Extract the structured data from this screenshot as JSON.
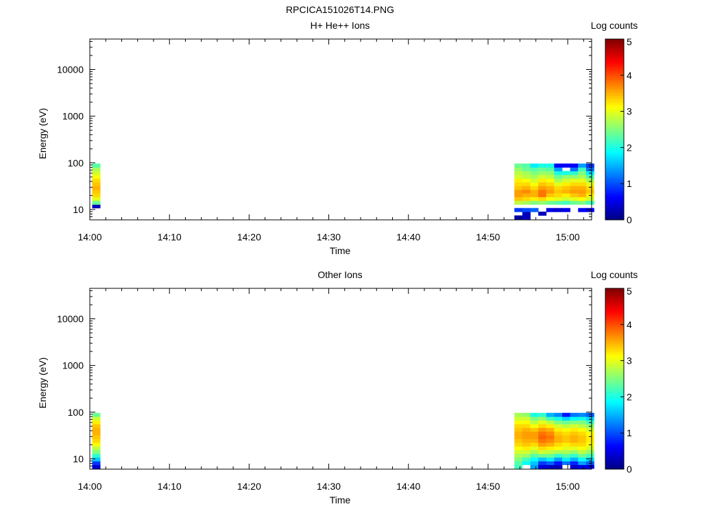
{
  "figure": {
    "filename": "RPCICA151026T14.PNG"
  },
  "colors": {
    "colormap": [
      "#00007f",
      "#0000ff",
      "#007fff",
      "#00ffff",
      "#7fff7f",
      "#ffff00",
      "#ff7f00",
      "#ff0000",
      "#7f0000"
    ]
  },
  "chart_data": [
    {
      "type": "heatmap",
      "title": "H+ He++ Ions",
      "xlabel": "Time",
      "ylabel": "Energy (eV)",
      "xlim": [
        "14:00",
        "15:03"
      ],
      "ylim": [
        6,
        45000
      ],
      "yscale": "log",
      "x_ticks": [
        "14:00",
        "14:10",
        "14:20",
        "14:30",
        "14:40",
        "14:50",
        "15:00"
      ],
      "y_ticks": [
        "10",
        "100",
        "1000",
        "10000"
      ],
      "colorbar": {
        "label": "Log counts",
        "range": [
          0,
          5
        ],
        "ticks": [
          "0",
          "1",
          "2",
          "3",
          "4",
          "5"
        ]
      },
      "energy_bins": [
        6.8,
        8.2,
        9.8,
        11.8,
        14.1,
        17.0,
        20.4,
        24.5,
        29.4,
        35.3,
        42.4,
        50.9,
        61.1,
        73.3,
        88.0
      ],
      "columns": [
        {
          "time": "14:00:48",
          "log_counts": [
            null,
            null,
            null,
            0.3,
            2.4,
            3.0,
            3.3,
            3.4,
            3.5,
            3.4,
            3.3,
            3.1,
            2.9,
            2.7,
            2.3
          ]
        },
        {
          "time": "14:53:48",
          "log_counts": [
            0.2,
            null,
            0.9,
            null,
            2.8,
            3.4,
            3.6,
            3.6,
            3.4,
            3.3,
            3.2,
            2.9,
            2.8,
            2.6,
            2.4
          ]
        },
        {
          "time": "14:54:48",
          "log_counts": [
            0.3,
            0.3,
            1.0,
            null,
            2.7,
            3.3,
            3.5,
            3.7,
            3.5,
            3.3,
            3.1,
            2.8,
            2.7,
            2.4,
            2.3
          ]
        },
        {
          "time": "14:55:48",
          "log_counts": [
            null,
            null,
            1.1,
            null,
            2.5,
            3.2,
            3.5,
            3.5,
            3.3,
            3.1,
            2.9,
            2.7,
            2.5,
            2.3,
            1.8
          ]
        },
        {
          "time": "14:56:48",
          "log_counts": [
            null,
            0.3,
            null,
            null,
            2.6,
            3.3,
            3.8,
            3.8,
            3.6,
            3.4,
            3.2,
            2.9,
            2.6,
            2.4,
            2.0
          ]
        },
        {
          "time": "14:57:48",
          "log_counts": [
            null,
            null,
            0.5,
            null,
            2.4,
            3.1,
            3.4,
            3.6,
            3.5,
            3.3,
            3.1,
            2.8,
            2.6,
            2.3,
            2.0
          ]
        },
        {
          "time": "14:58:48",
          "log_counts": [
            null,
            null,
            0.4,
            null,
            2.3,
            3.0,
            3.3,
            3.4,
            3.3,
            3.0,
            2.7,
            2.4,
            2.0,
            1.4,
            0.6
          ]
        },
        {
          "time": "14:59:48",
          "log_counts": [
            null,
            null,
            0.5,
            null,
            2.2,
            2.9,
            3.2,
            3.5,
            3.4,
            3.2,
            2.9,
            2.6,
            2.0,
            null,
            0.6
          ]
        },
        {
          "time": "15:00:48",
          "log_counts": [
            null,
            null,
            null,
            null,
            2.4,
            3.0,
            3.4,
            3.6,
            3.5,
            3.3,
            3.0,
            2.6,
            2.1,
            1.2,
            0.6
          ]
        },
        {
          "time": "15:01:48",
          "log_counts": [
            null,
            null,
            0.6,
            null,
            2.5,
            3.1,
            3.5,
            3.6,
            3.5,
            3.3,
            3.0,
            2.7,
            2.5,
            2.2,
            1.4
          ]
        },
        {
          "time": "15:02:48",
          "log_counts": [
            null,
            null,
            0.6,
            null,
            2.2,
            2.9,
            3.2,
            3.4,
            3.3,
            3.0,
            2.7,
            2.3,
            1.8,
            1.2,
            0.9
          ]
        }
      ]
    },
    {
      "type": "heatmap",
      "title": "Other Ions",
      "xlabel": "Time",
      "ylabel": "Energy (eV)",
      "xlim": [
        "14:00",
        "15:03"
      ],
      "ylim": [
        6,
        45000
      ],
      "yscale": "log",
      "x_ticks": [
        "14:00",
        "14:10",
        "14:20",
        "14:30",
        "14:40",
        "14:50",
        "15:00"
      ],
      "y_ticks": [
        "10",
        "100",
        "1000",
        "10000"
      ],
      "colorbar": {
        "label": "Log counts",
        "range": [
          0,
          5
        ],
        "ticks": [
          "0",
          "1",
          "2",
          "3",
          "4",
          "5"
        ]
      },
      "energy_bins": [
        6.8,
        8.2,
        9.8,
        11.8,
        14.1,
        17.0,
        20.4,
        24.5,
        29.4,
        35.3,
        42.4,
        50.9,
        61.1,
        73.3,
        88.0
      ],
      "columns": [
        {
          "time": "14:00:48",
          "log_counts": [
            0.4,
            0.9,
            1.6,
            2.1,
            2.5,
            2.8,
            3.1,
            3.3,
            3.4,
            3.5,
            3.5,
            3.4,
            3.2,
            2.9,
            2.4
          ]
        },
        {
          "time": "14:53:48",
          "log_counts": [
            2.2,
            2.3,
            2.5,
            2.7,
            2.9,
            3.1,
            3.3,
            3.4,
            3.5,
            3.5,
            3.4,
            3.3,
            3.1,
            2.9,
            2.7
          ]
        },
        {
          "time": "14:54:48",
          "log_counts": [
            null,
            1.9,
            2.2,
            2.6,
            2.9,
            3.2,
            3.4,
            3.5,
            3.6,
            3.6,
            3.5,
            3.3,
            3.1,
            2.9,
            2.6
          ]
        },
        {
          "time": "14:55:48",
          "log_counts": [
            1.4,
            1.6,
            1.9,
            2.3,
            2.7,
            3.0,
            3.3,
            3.5,
            3.6,
            3.6,
            3.4,
            3.1,
            2.8,
            2.5,
            2.0
          ]
        },
        {
          "time": "14:56:48",
          "log_counts": [
            0.4,
            0.9,
            1.6,
            2.4,
            2.9,
            3.3,
            3.6,
            3.8,
            3.9,
            3.8,
            3.6,
            3.3,
            3.0,
            2.6,
            2.1
          ]
        },
        {
          "time": "14:57:48",
          "log_counts": [
            0.4,
            1.1,
            1.8,
            2.4,
            2.8,
            3.2,
            3.5,
            3.7,
            3.8,
            3.7,
            3.5,
            3.2,
            2.8,
            2.2,
            1.5
          ]
        },
        {
          "time": "14:58:48",
          "log_counts": [
            0.3,
            0.7,
            1.4,
            2.1,
            2.7,
            3.1,
            3.3,
            3.5,
            3.5,
            3.4,
            3.2,
            2.9,
            2.5,
            2.0,
            1.3
          ]
        },
        {
          "time": "14:59:48",
          "log_counts": [
            null,
            1.2,
            1.8,
            2.3,
            2.7,
            3.0,
            3.2,
            3.4,
            3.4,
            3.3,
            3.1,
            2.8,
            2.4,
            1.7,
            0.7
          ]
        },
        {
          "time": "15:00:48",
          "log_counts": [
            0.4,
            0.8,
            1.5,
            2.1,
            2.6,
            3.0,
            3.3,
            3.5,
            3.5,
            3.4,
            3.2,
            2.9,
            2.5,
            1.9,
            1.2
          ]
        },
        {
          "time": "15:01:48",
          "log_counts": [
            0.5,
            1.4,
            1.9,
            2.4,
            2.8,
            3.1,
            3.3,
            3.4,
            3.4,
            3.3,
            3.1,
            2.8,
            2.5,
            2.0,
            1.3
          ]
        },
        {
          "time": "15:02:48",
          "log_counts": [
            0.5,
            1.1,
            1.7,
            2.2,
            2.6,
            2.9,
            3.1,
            3.2,
            3.2,
            3.1,
            2.9,
            2.6,
            2.2,
            1.7,
            1.1
          ]
        }
      ]
    }
  ]
}
